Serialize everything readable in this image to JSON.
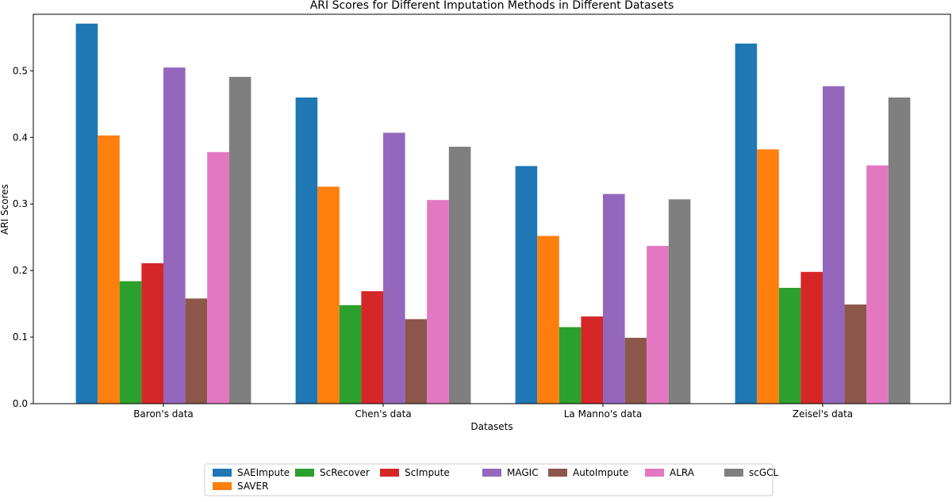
{
  "chart_data": {
    "type": "bar",
    "title": "ARI Scores for Different Imputation Methods in Different Datasets",
    "xlabel": "Datasets",
    "ylabel": "ARI Scores",
    "ylim": [
      0,
      0.585
    ],
    "yticks": [
      0.0,
      0.1,
      0.2,
      0.3,
      0.4,
      0.5
    ],
    "ytick_labels": [
      "0.0",
      "0.1",
      "0.2",
      "0.3",
      "0.4",
      "0.5"
    ],
    "categories": [
      "Baron's data",
      "Chen's data",
      "La Manno's data",
      "Zeisel's data"
    ],
    "legend_position": "bottom-center",
    "series": [
      {
        "name": "SAEImpute",
        "color": "#1f77b4",
        "values": [
          0.571,
          0.46,
          0.357,
          0.541
        ]
      },
      {
        "name": "SAVER",
        "color": "#ff7f0e",
        "values": [
          0.403,
          0.326,
          0.252,
          0.382
        ]
      },
      {
        "name": "ScRecover",
        "color": "#2ca02c",
        "values": [
          0.184,
          0.148,
          0.115,
          0.174
        ]
      },
      {
        "name": "ScImpute",
        "color": "#d62728",
        "values": [
          0.211,
          0.169,
          0.131,
          0.198
        ]
      },
      {
        "name": "MAGIC",
        "color": "#9467bd",
        "values": [
          0.505,
          0.407,
          0.315,
          0.477
        ]
      },
      {
        "name": "AutoImpute",
        "color": "#8c564b",
        "values": [
          0.158,
          0.127,
          0.099,
          0.149
        ]
      },
      {
        "name": "ALRA",
        "color": "#e377c2",
        "values": [
          0.378,
          0.306,
          0.237,
          0.358
        ]
      },
      {
        "name": "scGCL",
        "color": "#7f7f7f",
        "values": [
          0.491,
          0.386,
          0.307,
          0.46
        ]
      }
    ]
  }
}
